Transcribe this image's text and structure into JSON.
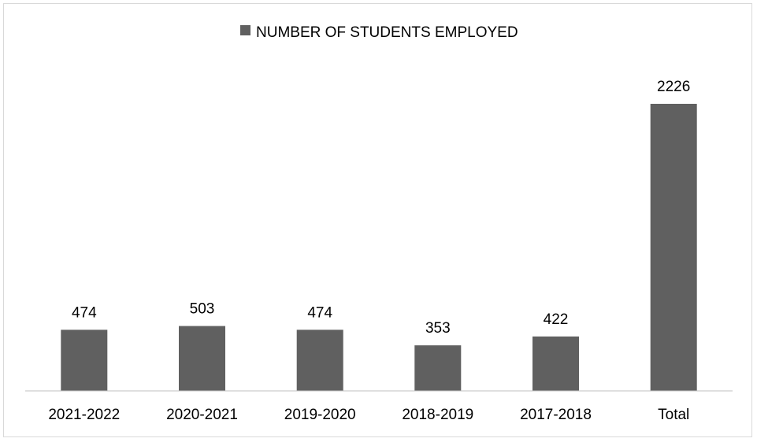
{
  "chart_data": {
    "type": "bar",
    "categories": [
      "2021-2022",
      "2020-2021",
      "2019-2020",
      "2018-2019",
      "2017-2018",
      "Total"
    ],
    "series": [
      {
        "name": "NUMBER OF STUDENTS EMPLOYED",
        "values": [
          474,
          503,
          474,
          353,
          422,
          2226
        ]
      }
    ],
    "title": "",
    "xlabel": "",
    "ylabel": "",
    "ylim": [
      0,
      2226
    ],
    "grid": false,
    "legend_position": "top",
    "data_labels": true,
    "bar_color": "#606060",
    "axis_color": "#bfbfbf"
  }
}
